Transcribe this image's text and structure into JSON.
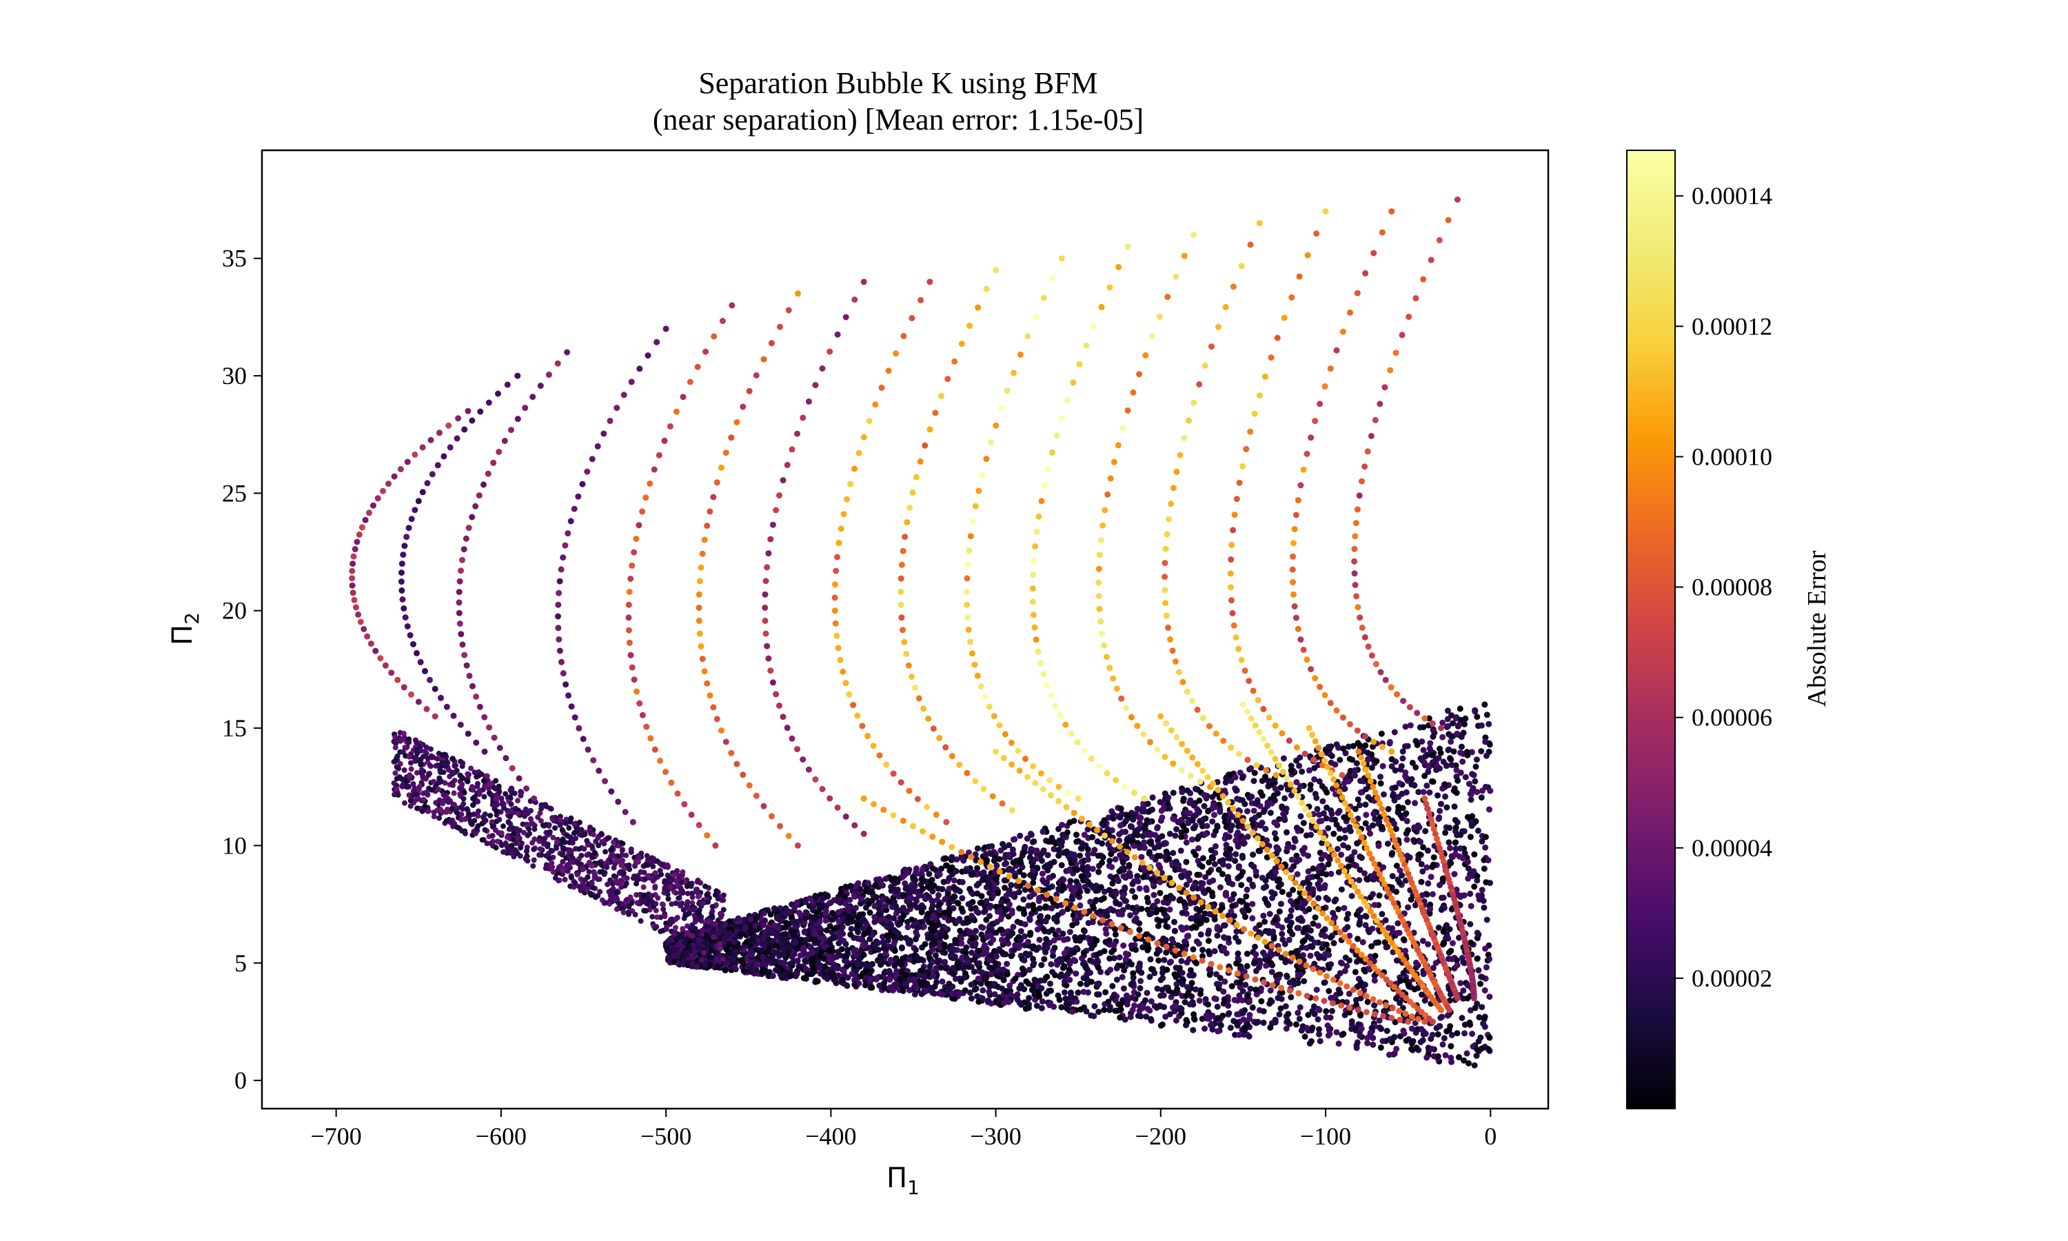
{
  "chart_data": {
    "type": "scatter",
    "title_lines": [
      "Separation Bubble K using BFM",
      "(near separation) [Mean error: 1.15e-05]"
    ],
    "xlabel": "Π",
    "xlabel_sub": "1",
    "ylabel": "Π",
    "ylabel_sub": "2",
    "xlim": [
      -745,
      35
    ],
    "ylim": [
      -1.2,
      39.6
    ],
    "xticks": [
      -700,
      -600,
      -500,
      -400,
      -300,
      -200,
      -100,
      0
    ],
    "xtick_labels": [
      "−700",
      "−600",
      "−500",
      "−400",
      "−300",
      "−200",
      "−100",
      "0"
    ],
    "yticks": [
      0,
      5,
      10,
      15,
      20,
      25,
      30,
      35
    ],
    "ytick_labels": [
      "0",
      "5",
      "10",
      "15",
      "20",
      "25",
      "30",
      "35"
    ],
    "grid": false,
    "colormap": "inferno",
    "colorbar": {
      "label": "Absolute Error",
      "range": [
        0.0,
        0.000147
      ],
      "ticks": [
        2e-05,
        4e-05,
        6e-05,
        8e-05,
        0.0001,
        0.00012,
        0.00014
      ],
      "tick_labels": [
        "0.00002",
        "0.00004",
        "0.00006",
        "0.00008",
        "0.00010",
        "0.00012",
        "0.00014"
      ]
    },
    "series": [
      {
        "group": "outer-curves",
        "curves": [
          {
            "tip": [
              -710,
              22
            ],
            "top": [
              -620,
              28.5
            ],
            "bottom": [
              -640,
              15.5
            ],
            "err": 6e-05
          },
          {
            "tip": [
              -680,
              22
            ],
            "top": [
              -590,
              30
            ],
            "bottom": [
              -610,
              14
            ],
            "err": 3e-05
          },
          {
            "tip": [
              -640,
              21
            ],
            "top": [
              -560,
              31
            ],
            "bottom": [
              -580,
              12
            ],
            "err": 5e-05
          },
          {
            "tip": [
              -580,
              20
            ],
            "top": [
              -500,
              32
            ],
            "bottom": [
              -520,
              11
            ],
            "err": 4e-05
          },
          {
            "tip": [
              -540,
              19
            ],
            "top": [
              -460,
              33
            ],
            "bottom": [
              -470,
              10
            ],
            "err": 8e-05
          },
          {
            "tip": [
              -500,
              18.5
            ],
            "top": [
              -420,
              33.5
            ],
            "bottom": [
              -420,
              10
            ],
            "err": 9e-05
          },
          {
            "tip": [
              -460,
              18
            ],
            "top": [
              -380,
              34
            ],
            "bottom": [
              -380,
              10.5
            ],
            "err": 6e-05
          },
          {
            "tip": [
              -420,
              17.5
            ],
            "top": [
              -340,
              34
            ],
            "bottom": [
              -330,
              11
            ],
            "err": 0.0001
          },
          {
            "tip": [
              -380,
              17.5
            ],
            "top": [
              -300,
              34.5
            ],
            "bottom": [
              -290,
              11.5
            ],
            "err": 0.00011
          },
          {
            "tip": [
              -340,
              17
            ],
            "top": [
              -260,
              35
            ],
            "bottom": [
              -250,
              12
            ],
            "err": 0.00013
          },
          {
            "tip": [
              -300,
              17
            ],
            "top": [
              -220,
              35.5
            ],
            "bottom": [
              -210,
              12
            ],
            "err": 0.00014
          },
          {
            "tip": [
              -260,
              17
            ],
            "top": [
              -180,
              36
            ],
            "bottom": [
              -170,
              12.5
            ],
            "err": 0.00012
          },
          {
            "tip": [
              -220,
              17
            ],
            "top": [
              -140,
              36.5
            ],
            "bottom": [
              -130,
              13
            ],
            "err": 0.00011
          },
          {
            "tip": [
              -180,
              17
            ],
            "top": [
              -100,
              37
            ],
            "bottom": [
              -90,
              13
            ],
            "err": 0.0001
          },
          {
            "tip": [
              -140,
              18
            ],
            "top": [
              -60,
              37
            ],
            "bottom": [
              -60,
              14
            ],
            "err": 9e-05
          },
          {
            "tip": [
              -100,
              19
            ],
            "top": [
              -20,
              37.5
            ],
            "bottom": [
              -30,
              15
            ],
            "err": 8e-05
          }
        ]
      },
      {
        "group": "dense-lower-band",
        "points": [
          [
            -500,
            5
          ],
          [
            -300,
            3.5
          ],
          [
            -100,
            1.5
          ],
          [
            -30,
            0.8
          ],
          [
            0,
            2.5
          ],
          [
            0,
            16.3
          ],
          [
            -200,
            13.5
          ],
          [
            -400,
            9.5
          ]
        ],
        "err_range": [
          0.0,
          4e-05
        ]
      },
      {
        "group": "descending-curves",
        "curves": [
          {
            "from": [
              -380,
              12
            ],
            "to": [
              -50,
              2.5
            ],
            "err": 0.00011
          },
          {
            "from": [
              -300,
              14
            ],
            "to": [
              -40,
              2.5
            ],
            "err": 0.00012
          },
          {
            "from": [
              -200,
              15.5
            ],
            "to": [
              -35,
              2.5
            ],
            "err": 0.00012
          },
          {
            "from": [
              -150,
              16
            ],
            "to": [
              -30,
              3
            ],
            "err": 0.00013
          },
          {
            "from": [
              -110,
              15
            ],
            "to": [
              -25,
              3
            ],
            "err": 0.00011
          },
          {
            "from": [
              -80,
              14
            ],
            "to": [
              -20,
              3.5
            ],
            "err": 0.0001
          },
          {
            "from": [
              -40,
              12
            ],
            "to": [
              -10,
              3.5
            ],
            "err": 8e-05
          }
        ]
      }
    ]
  }
}
